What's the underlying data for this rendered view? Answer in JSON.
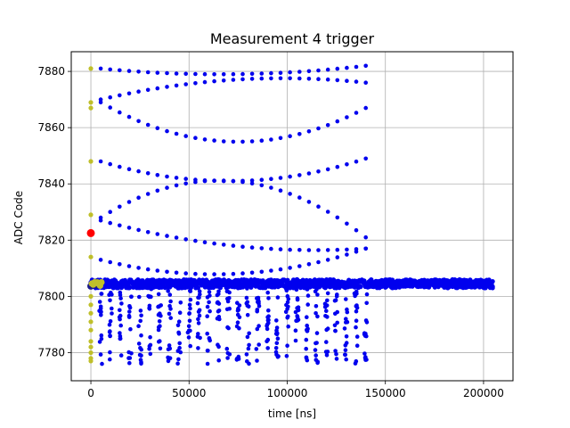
{
  "chart_data": {
    "type": "scatter",
    "title": "Measurement 4 trigger",
    "xlabel": "time [ns]",
    "ylabel": "ADC Code",
    "xlim": [
      -10000,
      215000
    ],
    "ylim": [
      7770,
      7887
    ],
    "xticks": [
      0,
      50000,
      100000,
      150000,
      200000
    ],
    "yticks": [
      7780,
      7800,
      7820,
      7840,
      7860,
      7880
    ],
    "grid": true,
    "colors": {
      "main": "#0000ee",
      "trigger": "#bfbf2a",
      "marker": "#ff0000",
      "baseline": "#1a1a8c"
    },
    "baseline": {
      "value": 7804.5,
      "x_start": 0,
      "x_end": 205000,
      "spread": 1.5
    },
    "ramp_lines": [
      {
        "x_start": 5000,
        "x_end": 140000,
        "y_start": 7881,
        "y_end": 7882,
        "y_mid": 7879,
        "shape": "dip"
      },
      {
        "x_start": 5000,
        "x_end": 140000,
        "y_start": 7870,
        "y_end": 7876,
        "y_mid": 7877,
        "shape": "rise"
      },
      {
        "x_start": 5000,
        "x_end": 140000,
        "y_start": 7869,
        "y_end": 7867,
        "y_mid": 7855,
        "shape": "dip"
      },
      {
        "x_start": 5000,
        "x_end": 140000,
        "y_start": 7848,
        "y_end": 7849,
        "y_mid": 7841,
        "shape": "dip"
      },
      {
        "x_start": 5000,
        "x_end": 140000,
        "y_start": 7828,
        "y_end": 7821,
        "y_mid": 7841,
        "shape": "rise"
      },
      {
        "x_start": 5000,
        "x_end": 140000,
        "y_start": 7827,
        "y_end": 7817,
        "y_mid": 7818,
        "shape": "dip"
      },
      {
        "x_start": 5000,
        "x_end": 140000,
        "y_start": 7813,
        "y_end": 7817,
        "y_mid": 7808,
        "shape": "dip"
      }
    ],
    "dense_band": {
      "x_start": 5000,
      "x_end": 140000,
      "y_min": 7776,
      "y_max": 7803
    },
    "trigger_points": [
      [
        0,
        7881
      ],
      [
        0,
        7869
      ],
      [
        0,
        7867
      ],
      [
        0,
        7848
      ],
      [
        0,
        7829
      ],
      [
        0,
        7814
      ],
      [
        0,
        7800
      ],
      [
        0,
        7797
      ],
      [
        0,
        7794
      ],
      [
        0,
        7791
      ],
      [
        0,
        7788
      ],
      [
        0,
        7784
      ],
      [
        0,
        7782
      ],
      [
        0,
        7780
      ],
      [
        0,
        7778
      ],
      [
        0,
        7777
      ]
    ],
    "marker_point": [
      0,
      7822.5
    ]
  }
}
